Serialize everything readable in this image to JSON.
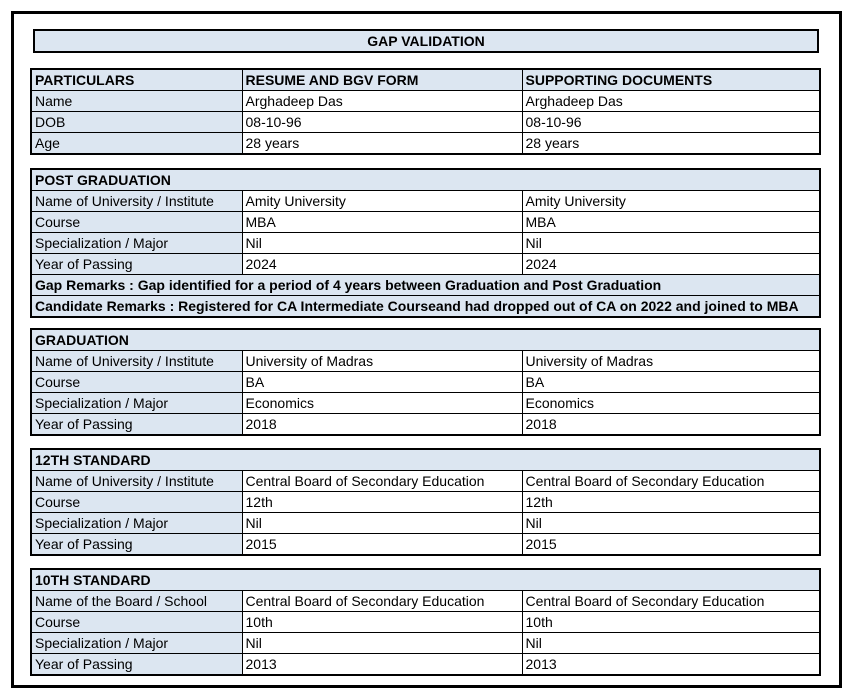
{
  "page": {
    "title": "GAP VALIDATION"
  },
  "colors": {
    "header_fill": "#DCE6F1",
    "border": "#000000",
    "text": "#000000",
    "background": "#FFFFFF"
  },
  "summary_table": {
    "columns": [
      "PARTICULARS",
      "RESUME AND BGV FORM",
      "SUPPORTING DOCUMENTS"
    ],
    "rows": [
      {
        "label": "Name",
        "resume": "Arghadeep Das",
        "supporting": "Arghadeep Das"
      },
      {
        "label": "DOB",
        "resume": "08-10-96",
        "supporting": "08-10-96"
      },
      {
        "label": "Age",
        "resume": "28 years",
        "supporting": "28 years"
      }
    ]
  },
  "sections": [
    {
      "title": "POST GRADUATION",
      "rows": [
        {
          "label": "Name of University / Institute",
          "resume": "Amity University",
          "supporting": "Amity University"
        },
        {
          "label": "Course",
          "resume": "MBA",
          "supporting": "MBA"
        },
        {
          "label": "Specialization / Major",
          "resume": "Nil",
          "supporting": "Nil"
        },
        {
          "label": "Year of Passing",
          "resume": "2024",
          "supporting": "2024"
        }
      ],
      "remarks": [
        "Gap Remarks : Gap identified for a period of 4 years between Graduation and Post Graduation",
        "Candidate Remarks : Registered for CA Intermediate Courseand had dropped out of CA on 2022 and joined to MBA"
      ]
    },
    {
      "title": "GRADUATION",
      "rows": [
        {
          "label": "Name of University / Institute",
          "resume": "University of Madras",
          "supporting": "University of Madras"
        },
        {
          "label": "Course",
          "resume": "BA",
          "supporting": "BA"
        },
        {
          "label": "Specialization / Major",
          "resume": "Economics",
          "supporting": "Economics"
        },
        {
          "label": "Year of Passing",
          "resume": "2018",
          "supporting": "2018"
        }
      ],
      "remarks": []
    },
    {
      "title": "12TH STANDARD",
      "rows": [
        {
          "label": "Name of University / Institute",
          "resume": "Central Board of Secondary Education",
          "supporting": "Central Board of Secondary Education"
        },
        {
          "label": "Course",
          "resume": "12th",
          "supporting": "12th"
        },
        {
          "label": "Specialization / Major",
          "resume": "Nil",
          "supporting": "Nil"
        },
        {
          "label": "Year of Passing",
          "resume": "2015",
          "supporting": "2015"
        }
      ],
      "remarks": []
    },
    {
      "title": "10TH STANDARD",
      "rows": [
        {
          "label": "Name of the Board / School",
          "resume": "Central Board of Secondary Education",
          "supporting": "Central Board of Secondary Education"
        },
        {
          "label": "Course",
          "resume": "10th",
          "supporting": "10th"
        },
        {
          "label": "Specialization / Major",
          "resume": "Nil",
          "supporting": "Nil"
        },
        {
          "label": "Year of Passing",
          "resume": "2013",
          "supporting": "2013"
        }
      ],
      "remarks": []
    }
  ]
}
